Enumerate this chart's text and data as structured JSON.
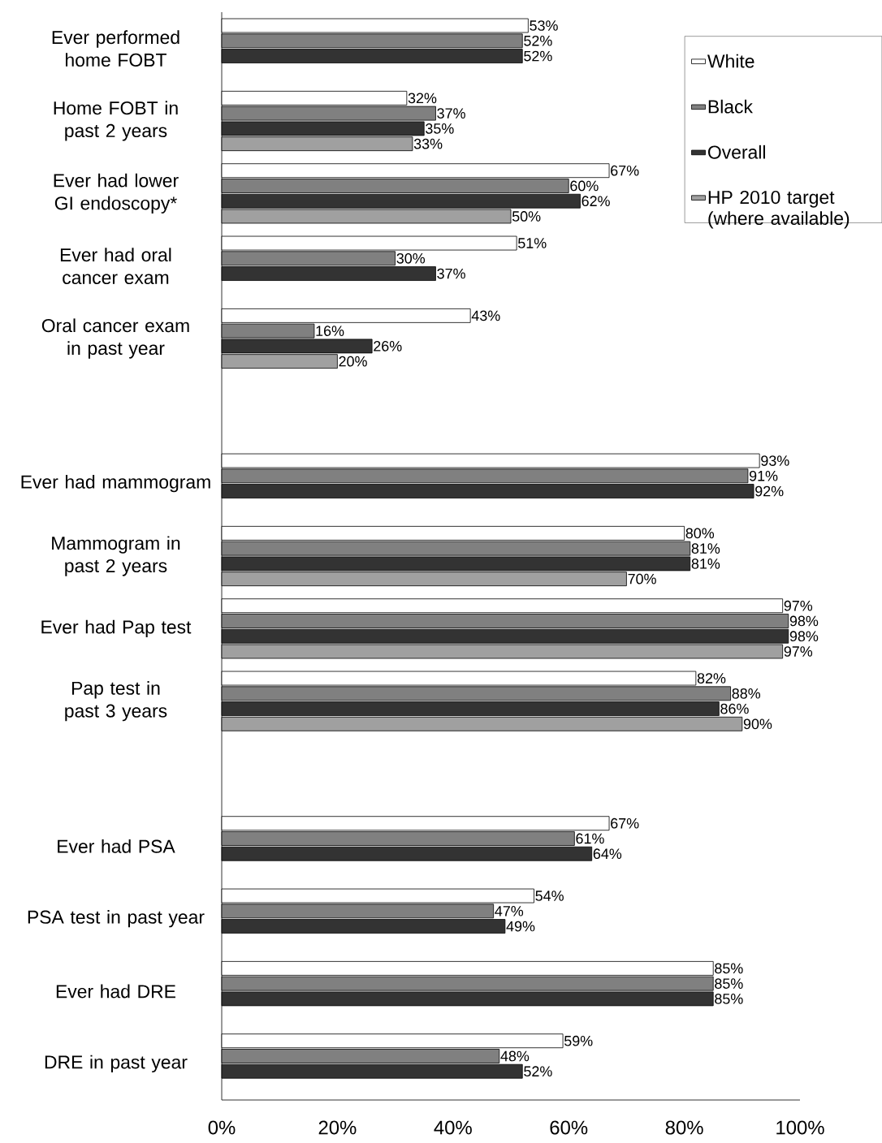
{
  "chart_data": {
    "type": "bar",
    "orientation": "horizontal",
    "categories": [
      "Ever performed home FOBT",
      "Home FOBT in past 2 years",
      "Ever had lower GI endoscopy*",
      "Ever had oral cancer exam",
      "Oral cancer exam in past year",
      null,
      "Ever had mammogram",
      "Mammogram in past 2 years",
      "Ever had Pap test",
      "Pap test in past 3 years",
      null,
      "Ever had PSA",
      "PSA test in past year",
      "Ever had DRE",
      "DRE in past year"
    ],
    "series": [
      {
        "name": "White",
        "color": "#ffffff",
        "values": [
          53,
          32,
          67,
          51,
          43,
          null,
          93,
          80,
          97,
          82,
          null,
          67,
          54,
          85,
          59
        ],
        "value_labels": [
          "53%",
          "32%",
          "67%",
          "51%",
          "43%",
          null,
          "93%",
          "80%",
          "97%",
          "82%",
          null,
          "67%",
          "54%",
          "85%",
          "59%"
        ]
      },
      {
        "name": "Black",
        "color": "#808080",
        "values": [
          52,
          37,
          60,
          30,
          16,
          null,
          91,
          81,
          98,
          88,
          null,
          61,
          47,
          85,
          48
        ],
        "value_labels": [
          "52%",
          "37%",
          "60%",
          "30%",
          "16%",
          null,
          "91%",
          "81%",
          "98%",
          "88%",
          null,
          "61%",
          "47%",
          "85%",
          "48%"
        ]
      },
      {
        "name": "Overall",
        "color": "#333333",
        "values": [
          52,
          35,
          62,
          37,
          26,
          null,
          92,
          81,
          98,
          86,
          null,
          64,
          49,
          85,
          52
        ],
        "value_labels": [
          "52%",
          "35%",
          "62%",
          "37%",
          "26%",
          null,
          "92%",
          "81%",
          "98%",
          "86%",
          null,
          "64%",
          "49%",
          "85%",
          "52%"
        ]
      },
      {
        "name": "HP 2010 target (where available)",
        "color": "#a0a0a0",
        "values": [
          null,
          33,
          50,
          null,
          20,
          null,
          null,
          70,
          97,
          90,
          null,
          null,
          null,
          null,
          null
        ],
        "value_labels": [
          null,
          "33%",
          "50%",
          null,
          "20%",
          null,
          null,
          "70%",
          "97%",
          "90%",
          null,
          null,
          null,
          null,
          null
        ]
      }
    ],
    "xlim": [
      0,
      100
    ],
    "xticks": [
      {
        "value": 0,
        "label": "0%"
      },
      {
        "value": 20,
        "label": "20%"
      },
      {
        "value": 40,
        "label": "40%"
      },
      {
        "value": 60,
        "label": "60%"
      },
      {
        "value": 80,
        "label": "80%"
      },
      {
        "value": 100,
        "label": "100%"
      }
    ],
    "grid": false,
    "legend": "top right"
  }
}
